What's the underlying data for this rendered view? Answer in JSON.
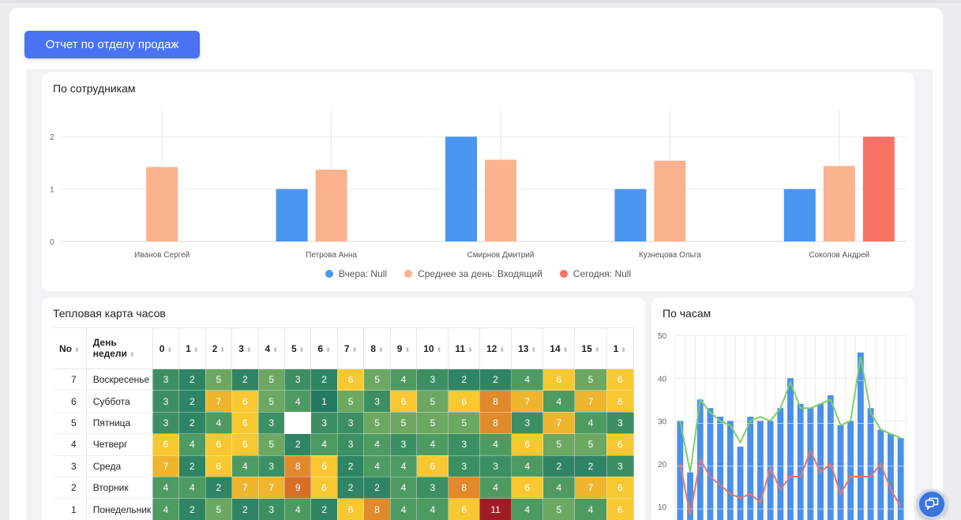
{
  "report_button": "Отчет по отделу продаж",
  "by_employee": {
    "title": "По сотрудникам",
    "chart_data": {
      "type": "bar",
      "categories": [
        "Иванов Сергей",
        "Петрова Анна",
        "Смирнов Дмитрий",
        "Кузнецова Ольга",
        "Соколов Андрей"
      ],
      "series": [
        {
          "name": "Вчера: Null",
          "color": "#4a96f0",
          "values": [
            0,
            1,
            2,
            1,
            1
          ]
        },
        {
          "name": "Среднее за день: Входящий",
          "color": "#fbb28e",
          "values": [
            1.42,
            1.37,
            1.56,
            1.54,
            1.44
          ]
        },
        {
          "name": "Сегодня: Null",
          "color": "#f87364",
          "values": [
            0,
            0,
            0,
            0,
            2
          ]
        }
      ],
      "yticks": [
        0,
        1,
        2
      ],
      "ylim": [
        0,
        2.5
      ],
      "legend": "bottom"
    }
  },
  "heatmap": {
    "title": "Тепловая карта часов",
    "col_no": "No",
    "col_day": "День недели",
    "hours": [
      "0",
      "1",
      "2",
      "3",
      "4",
      "5",
      "6",
      "7",
      "8",
      "9",
      "10",
      "11",
      "12",
      "13",
      "14",
      "15",
      "1"
    ],
    "rows": [
      {
        "no": "7",
        "day": "Воскресенье",
        "values": [
          3,
          2,
          5,
          2,
          5,
          3,
          2,
          6,
          5,
          4,
          3,
          2,
          2,
          4,
          6,
          5,
          6
        ]
      },
      {
        "no": "6",
        "day": "Суббота",
        "values": [
          3,
          2,
          7,
          6,
          5,
          4,
          1,
          5,
          3,
          6,
          5,
          6,
          8,
          7,
          4,
          7,
          6
        ]
      },
      {
        "no": "5",
        "day": "Пятница",
        "values": [
          3,
          2,
          4,
          6,
          3,
          null,
          3,
          3,
          5,
          5,
          5,
          5,
          8,
          3,
          7,
          4,
          3
        ]
      },
      {
        "no": "4",
        "day": "Четверг",
        "values": [
          6,
          4,
          6,
          6,
          5,
          2,
          4,
          3,
          4,
          3,
          4,
          3,
          4,
          6,
          5,
          5,
          6
        ]
      },
      {
        "no": "3",
        "day": "Среда",
        "values": [
          7,
          2,
          6,
          4,
          3,
          8,
          6,
          2,
          4,
          4,
          6,
          3,
          3,
          4,
          2,
          2,
          3
        ]
      },
      {
        "no": "2",
        "day": "Вторник",
        "values": [
          4,
          4,
          2,
          7,
          7,
          9,
          6,
          2,
          2,
          4,
          3,
          8,
          4,
          6,
          4,
          7,
          6
        ]
      },
      {
        "no": "1",
        "day": "Понедельник",
        "values": [
          4,
          2,
          5,
          2,
          3,
          4,
          2,
          6,
          8,
          4,
          4,
          6,
          11,
          4,
          5,
          4,
          6
        ]
      }
    ]
  },
  "by_hour": {
    "title": "По часам",
    "chart_data": {
      "type": "bar",
      "yticks": [
        10,
        20,
        30,
        40,
        50
      ],
      "ylim": [
        8,
        52
      ],
      "series": [
        {
          "type": "bar",
          "color": "#4a90e8",
          "values": [
            30,
            18,
            35,
            33,
            31,
            30,
            24,
            31,
            30,
            30,
            33,
            40,
            34,
            33,
            34,
            36,
            29,
            30,
            46,
            33,
            28,
            27,
            26
          ]
        },
        {
          "type": "line",
          "color": "#7dcf6a",
          "values": [
            30,
            18,
            35,
            32,
            30,
            29,
            25,
            30,
            31,
            30,
            33,
            39,
            33,
            33,
            34,
            35,
            29,
            30,
            45,
            32,
            28,
            27,
            26
          ]
        },
        {
          "type": "line",
          "color": "#e8766e",
          "values": [
            20,
            8,
            21,
            17,
            15,
            13,
            12,
            13,
            11,
            19,
            14,
            17,
            17,
            23,
            18,
            20,
            13,
            17,
            17,
            17,
            20,
            14,
            10
          ]
        }
      ]
    }
  }
}
